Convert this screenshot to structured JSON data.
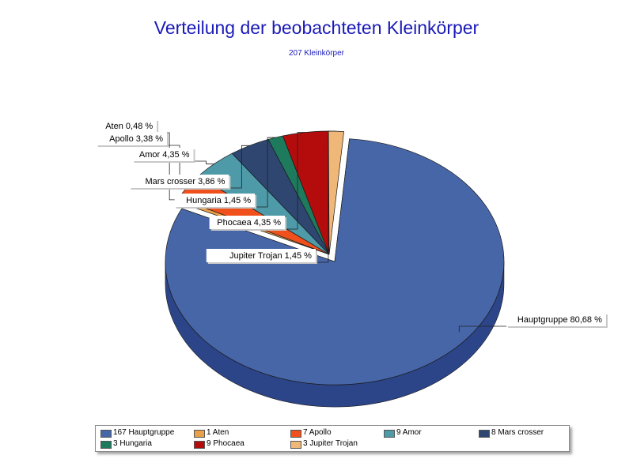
{
  "chart_data": {
    "type": "pie",
    "title": "Verteilung der beobachteten Kleinkörper",
    "subtitle": "207 Kleinkörper",
    "slices": [
      {
        "name": "Hauptgruppe",
        "count": 167,
        "percent": 80.68,
        "label": "Hauptgruppe 80,68 %",
        "legend": "167 Hauptgruppe",
        "color": "#4766a8",
        "dark": "#2c4588"
      },
      {
        "name": "Aten",
        "count": 1,
        "percent": 0.48,
        "label": "Aten 0,48 %",
        "legend": "1 Aten",
        "color": "#e8a04a",
        "dark": "#b07028"
      },
      {
        "name": "Apollo",
        "count": 7,
        "percent": 3.38,
        "label": "Apollo 3,38 %",
        "legend": "7 Apollo",
        "color": "#f0501c",
        "dark": "#b03010"
      },
      {
        "name": "Amor",
        "count": 9,
        "percent": 4.35,
        "label": "Amor 4,35 %",
        "legend": "9 Amor",
        "color": "#4e9aa8",
        "dark": "#2e6a78"
      },
      {
        "name": "Mars crosser",
        "count": 8,
        "percent": 3.86,
        "label": "Mars crosser 3,86 %",
        "legend": "8 Mars crosser",
        "color": "#2e4670",
        "dark": "#1c2c4c"
      },
      {
        "name": "Hungaria",
        "count": 3,
        "percent": 1.45,
        "label": "Hungaria 1,45 %",
        "legend": "3 Hungaria",
        "color": "#1e7a5c",
        "dark": "#10503c"
      },
      {
        "name": "Phocaea",
        "count": 9,
        "percent": 4.35,
        "label": "Phocaea 4,35 %",
        "legend": "9 Phocaea",
        "color": "#b40c0c",
        "dark": "#780606"
      },
      {
        "name": "Jupiter Trojan",
        "count": 3,
        "percent": 1.45,
        "label": "Jupiter Trojan 1,45 %",
        "legend": "3 Jupiter Trojan",
        "color": "#f0b878",
        "dark": "#c08848"
      }
    ],
    "exploded": [
      "Hauptgruppe"
    ],
    "style": "3d",
    "legend_position": "bottom"
  }
}
